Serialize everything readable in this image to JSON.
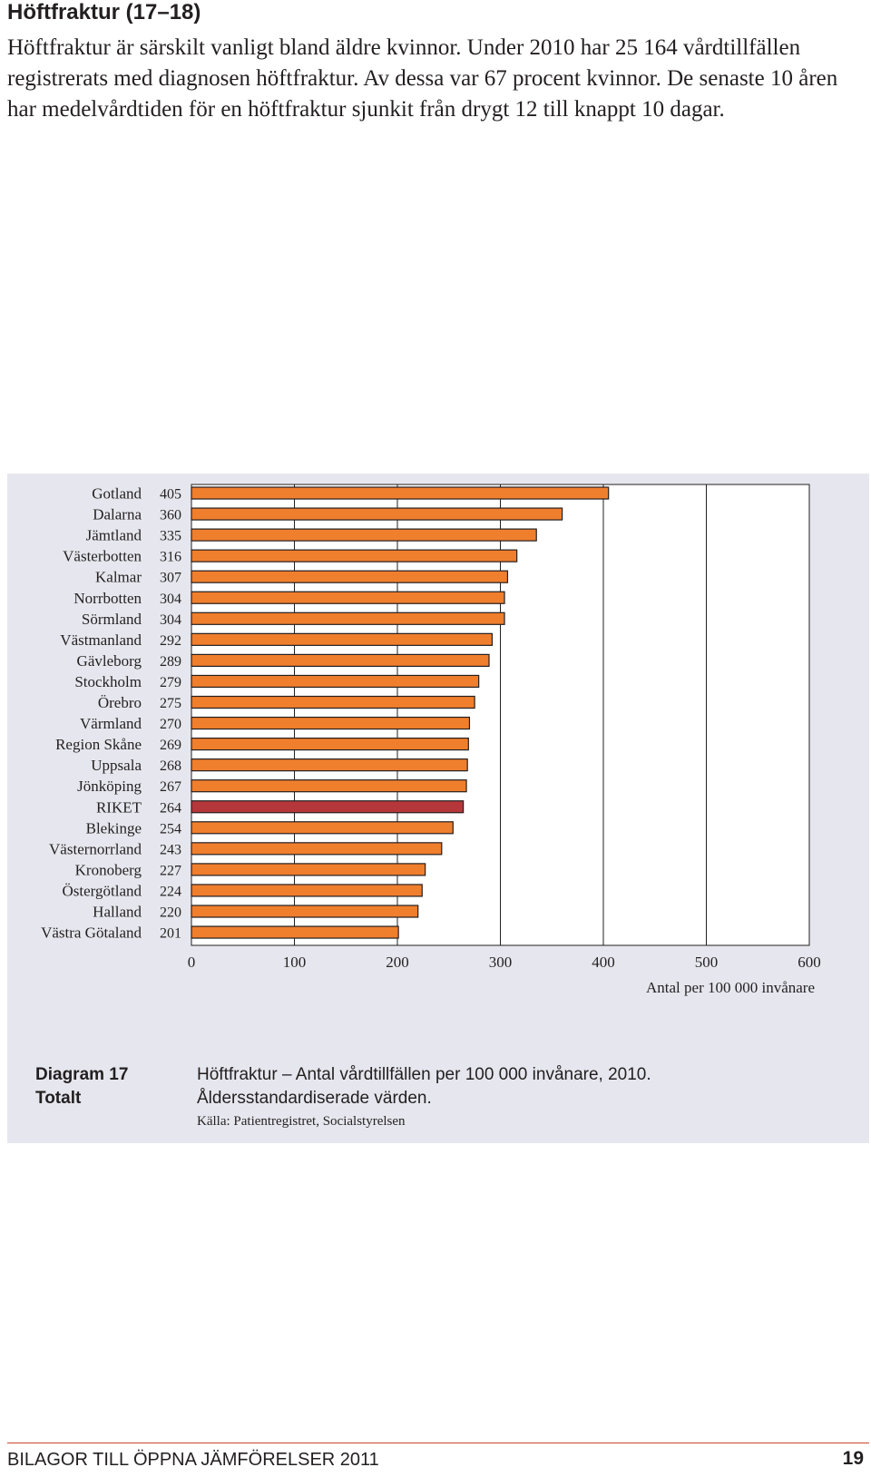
{
  "heading": "Höftfraktur (17–18)",
  "intro": "Höftfraktur är särskilt vanligt bland äldre kvinnor. Under 2010 har 25 164 vårdtillfällen registrerats med diagnosen höftfraktur. Av dessa var 67 procent kvinnor. De senaste 10 åren har medelvårdtiden för en höftfraktur sjunkit från drygt 12 till knappt 10 dagar.",
  "caption": {
    "label": "Diagram 17",
    "sublabel": "Totalt",
    "title": "Höftfraktur – Antal vårdtillfällen per 100 000 invånare, 2010.",
    "subtitle": "Åldersstandardiserade värden.",
    "source": "Källa: Patientregistret, Socialstyrelsen"
  },
  "footer": {
    "left": "BILAGOR TILL ÖPPNA JÄMFÖRELSER 2011",
    "page": "19"
  },
  "colors": {
    "bar": "#f07f2d",
    "highlight": "#b6373a",
    "panel": "#e6e7ee"
  },
  "chart_data": {
    "type": "bar",
    "orientation": "horizontal",
    "categories": [
      "Gotland",
      "Dalarna",
      "Jämtland",
      "Västerbotten",
      "Kalmar",
      "Norrbotten",
      "Sörmland",
      "Västmanland",
      "Gävleborg",
      "Stockholm",
      "Örebro",
      "Värmland",
      "Region Skåne",
      "Uppsala",
      "Jönköping",
      "RIKET",
      "Blekinge",
      "Västernorrland",
      "Kronoberg",
      "Östergötland",
      "Halland",
      "Västra Götaland"
    ],
    "values": [
      405,
      360,
      335,
      316,
      307,
      304,
      304,
      292,
      289,
      279,
      275,
      270,
      269,
      268,
      267,
      264,
      254,
      243,
      227,
      224,
      220,
      201
    ],
    "value_labels": [
      "405",
      "360",
      "335",
      "316",
      "307",
      "304",
      "304",
      "292",
      "289",
      "279",
      "275",
      "270",
      "269",
      "268",
      "267",
      "264",
      "254",
      "243",
      "227",
      "224",
      "220",
      "201"
    ],
    "highlight": "RIKET",
    "xlim": [
      0,
      600
    ],
    "xticks": [
      0,
      100,
      200,
      300,
      400,
      500,
      600
    ],
    "xtick_labels": [
      "0",
      "100",
      "200",
      "300",
      "400",
      "500",
      "600"
    ],
    "xlabel": "Antal per 100 000 invånare",
    "ylabel": "",
    "grid": "vertical"
  }
}
